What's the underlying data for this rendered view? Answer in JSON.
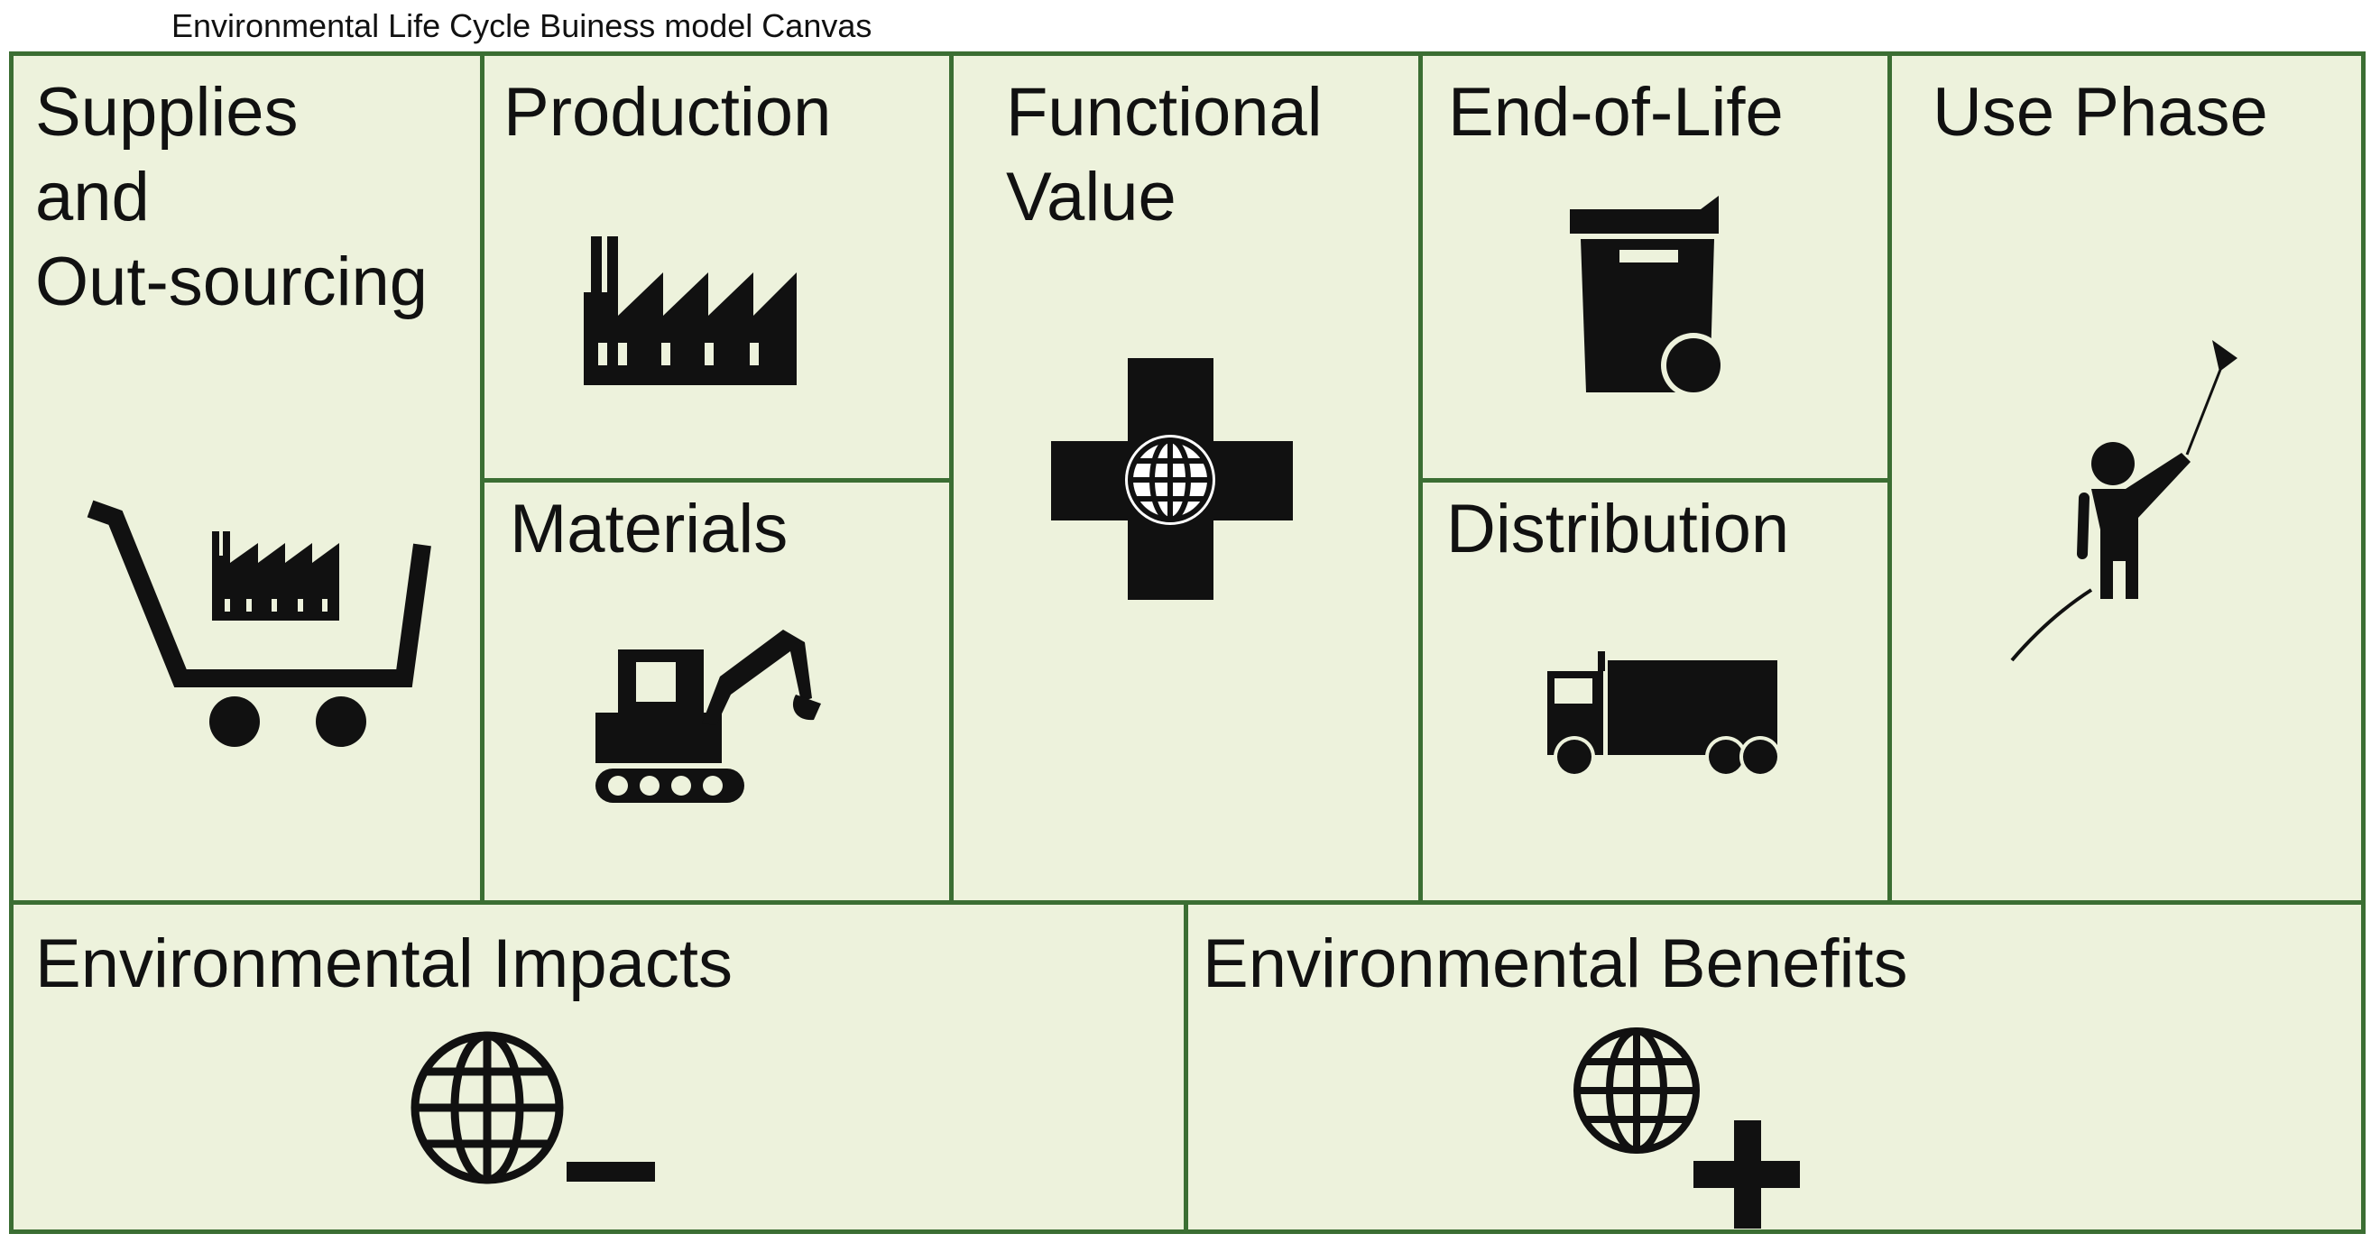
{
  "title": "Environmental Life Cycle Buiness model Canvas",
  "colors": {
    "background": "#edf2dc",
    "border": "#3b6e33",
    "icon": "#111111"
  },
  "blocks": {
    "supplies": {
      "label": "Supplies\nand\nOut-sourcing",
      "icon": "shopping-cart-with-factory-icon"
    },
    "production": {
      "label": "Production",
      "icon": "factory-icon"
    },
    "materials": {
      "label": "Materials",
      "icon": "excavator-icon"
    },
    "functional_value": {
      "label": "Functional\nValue",
      "icon": "cross-with-globe-icon"
    },
    "end_of_life": {
      "label": "End-of-Life",
      "icon": "wheelie-bin-icon"
    },
    "distribution": {
      "label": "Distribution",
      "icon": "truck-icon"
    },
    "use_phase": {
      "label": "Use Phase",
      "icon": "person-flying-kite-icon"
    },
    "environmental_impacts": {
      "label": "Environmental Impacts",
      "icon": "globe-minus-icon"
    },
    "environmental_benefits": {
      "label": "Environmental Benefits",
      "icon": "globe-plus-icon"
    }
  }
}
